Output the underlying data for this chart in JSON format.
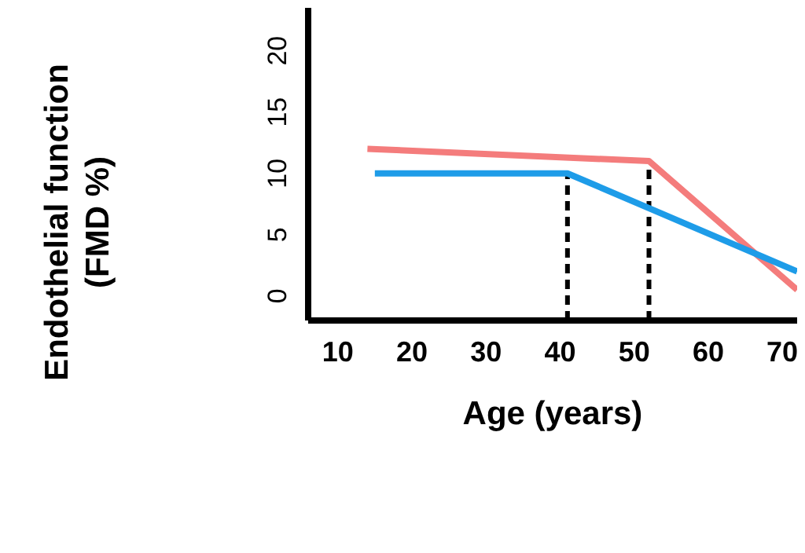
{
  "chart_data": {
    "type": "line",
    "xlabel": "Age (years)",
    "ylabel": "Endothelial function\n(FMD %)",
    "xlim": [
      6,
      72
    ],
    "xticks": [
      10,
      20,
      30,
      40,
      50,
      60,
      70
    ],
    "ylim": [
      -2,
      23.5
    ],
    "yticks": [
      0,
      5,
      10,
      15,
      20
    ],
    "grid": false,
    "legend": false,
    "marker": "none",
    "series": [
      {
        "color": "#f47c7c",
        "x": [
          14,
          52,
          72
        ],
        "values": [
          12,
          11,
          0.5
        ]
      },
      {
        "color": "#1e9ce8",
        "x": [
          15,
          41,
          72
        ],
        "values": [
          10,
          10,
          2
        ]
      }
    ],
    "ref_lines": [
      {
        "axis": "x",
        "value": 41,
        "color": "#000000",
        "line_style": "dashed"
      },
      {
        "axis": "x",
        "value": 52,
        "color": "#000000",
        "line_style": "dashed"
      }
    ]
  }
}
